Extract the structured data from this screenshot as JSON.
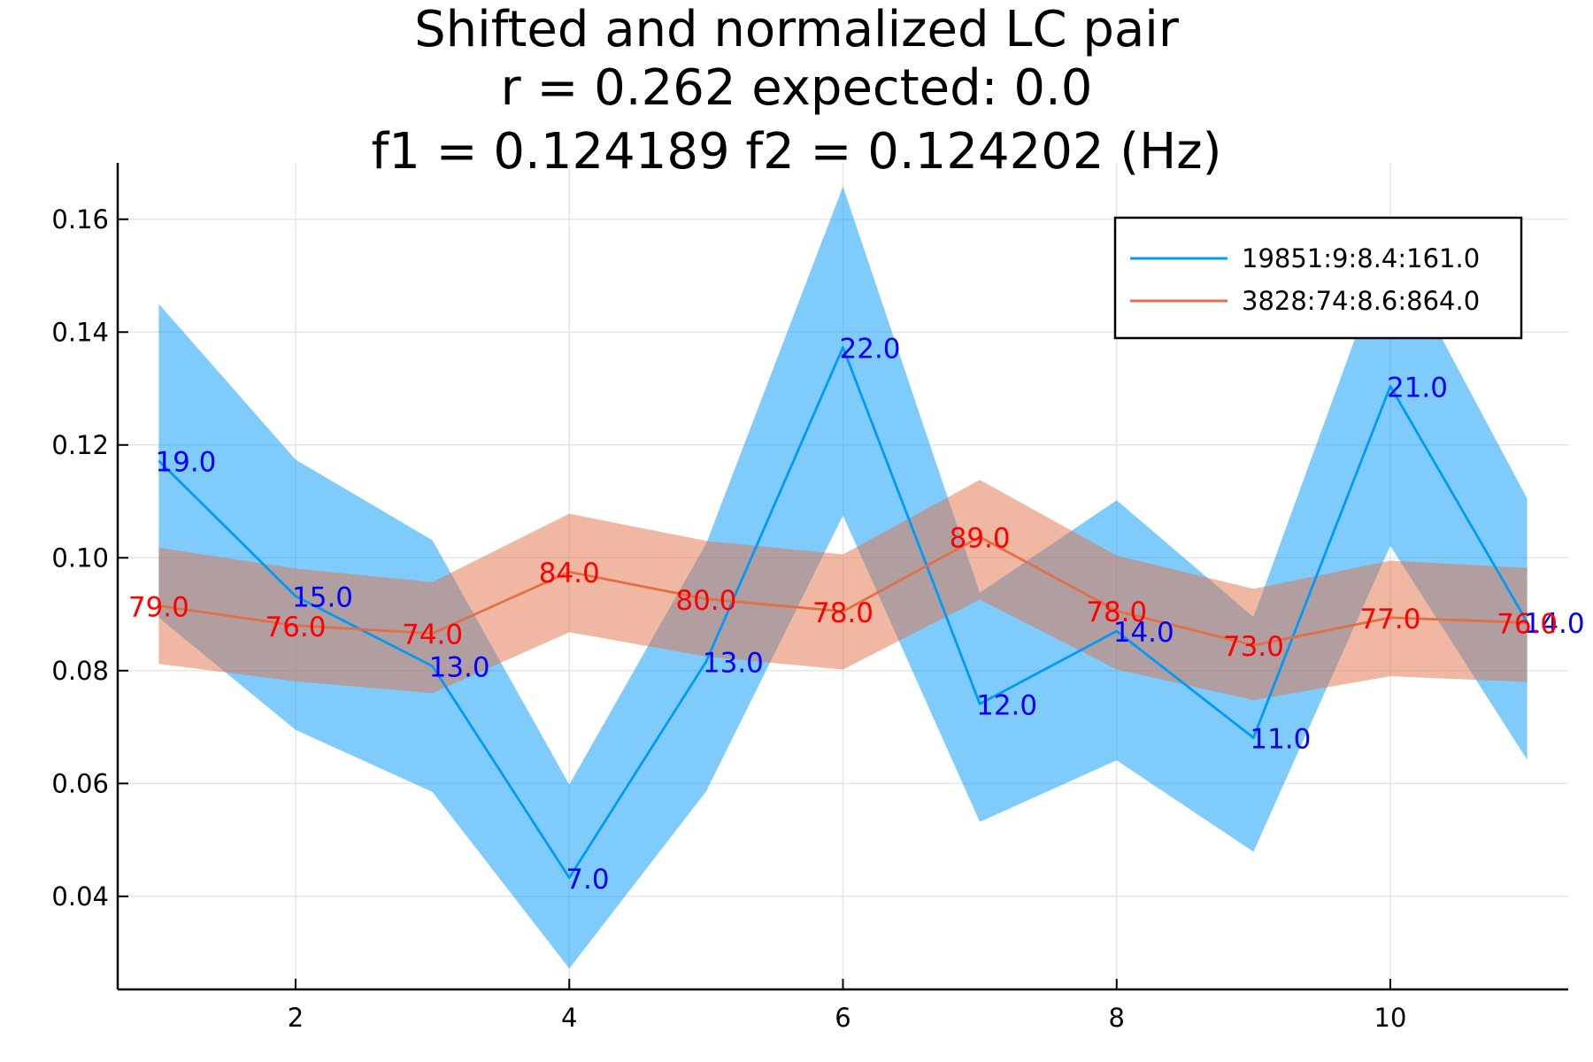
{
  "chart_data": {
    "type": "line",
    "title_lines": [
      "Shifted and normalized LC pair",
      "r = 0.262 expected: 0.0",
      "f1 = 0.124189    f2 = 0.124202 (Hz)"
    ],
    "xlabel": "",
    "ylabel": "",
    "xlim": [
      0.7,
      11.3
    ],
    "ylim": [
      0.0235,
      0.17
    ],
    "x_ticks": [
      2,
      4,
      6,
      8,
      10
    ],
    "y_ticks": [
      0.04,
      0.06,
      0.08,
      0.1,
      0.12,
      0.14,
      0.16
    ],
    "x_tick_labels": [
      "2",
      "4",
      "6",
      "8",
      "10"
    ],
    "y_tick_labels": [
      "0.04",
      "0.06",
      "0.08",
      "0.10",
      "0.12",
      "0.14",
      "0.16"
    ],
    "grid": true,
    "legend_position": "top-right",
    "x": [
      1,
      2,
      3,
      4,
      5,
      6,
      7,
      8,
      9,
      10,
      11
    ],
    "series": [
      {
        "name": "19851:9:8.4:161.0",
        "color": "#009af9",
        "label_color": "#0000ff",
        "values": [
          0.1172,
          0.0932,
          0.0808,
          0.0433,
          0.0816,
          0.1373,
          0.0741,
          0.087,
          0.0681,
          0.1304,
          0.0886
        ],
        "lower": [
          0.0894,
          0.0695,
          0.0585,
          0.0272,
          0.0586,
          0.1075,
          0.0532,
          0.0641,
          0.0479,
          0.1021,
          0.0642
        ],
        "upper": [
          0.145,
          0.1174,
          0.1031,
          0.0598,
          0.1025,
          0.1658,
          0.0938,
          0.1102,
          0.0895,
          0.156,
          0.1105
        ],
        "point_labels": [
          "19.0",
          "15.0",
          "13.0",
          "7.0",
          "13.0",
          "22.0",
          "12.0",
          "14.0",
          "11.0",
          "21.0",
          "14.0"
        ]
      },
      {
        "name": "3828:74:8.6:864.0",
        "color": "#e26f46",
        "label_color": "#ff0000",
        "values": [
          0.0915,
          0.088,
          0.0866,
          0.0975,
          0.0927,
          0.0905,
          0.1037,
          0.0906,
          0.0845,
          0.0894,
          0.0885
        ],
        "lower": [
          0.0812,
          0.0781,
          0.076,
          0.0868,
          0.0825,
          0.0802,
          0.0926,
          0.0802,
          0.0748,
          0.079,
          0.078
        ],
        "upper": [
          0.1018,
          0.0981,
          0.0957,
          0.1078,
          0.103,
          0.1006,
          0.1138,
          0.1004,
          0.0945,
          0.0995,
          0.0982
        ],
        "point_labels": [
          "79.0",
          "76.0",
          "74.0",
          "84.0",
          "80.0",
          "78.0",
          "89.0",
          "78.0",
          "73.0",
          "77.0",
          "76.0"
        ]
      }
    ]
  }
}
